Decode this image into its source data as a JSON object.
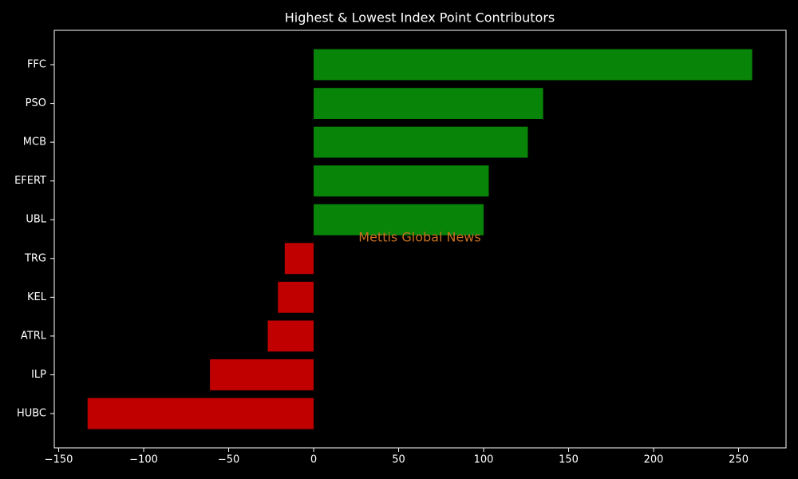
{
  "chart_data": {
    "type": "barh",
    "title": "Highest & Lowest Index Point Contributors",
    "categories": [
      "FFC",
      "PSO",
      "MCB",
      "EFERT",
      "UBL",
      "TRG",
      "KEL",
      "ATRL",
      "ILP",
      "HUBC"
    ],
    "values": [
      258,
      135,
      126,
      103,
      100,
      -17,
      -21,
      -27,
      -61,
      -133
    ],
    "positive_color": "#088408",
    "negative_color": "#c00000",
    "xlim": [
      -152.6,
      277.9
    ],
    "xticks": [
      {
        "value": -150,
        "label": "−150"
      },
      {
        "value": -100,
        "label": "−100"
      },
      {
        "value": -50,
        "label": "−50"
      },
      0,
      50,
      100,
      150,
      200,
      250
    ],
    "annotation": "Mettis Global News",
    "annotation_color": "#c87020"
  }
}
